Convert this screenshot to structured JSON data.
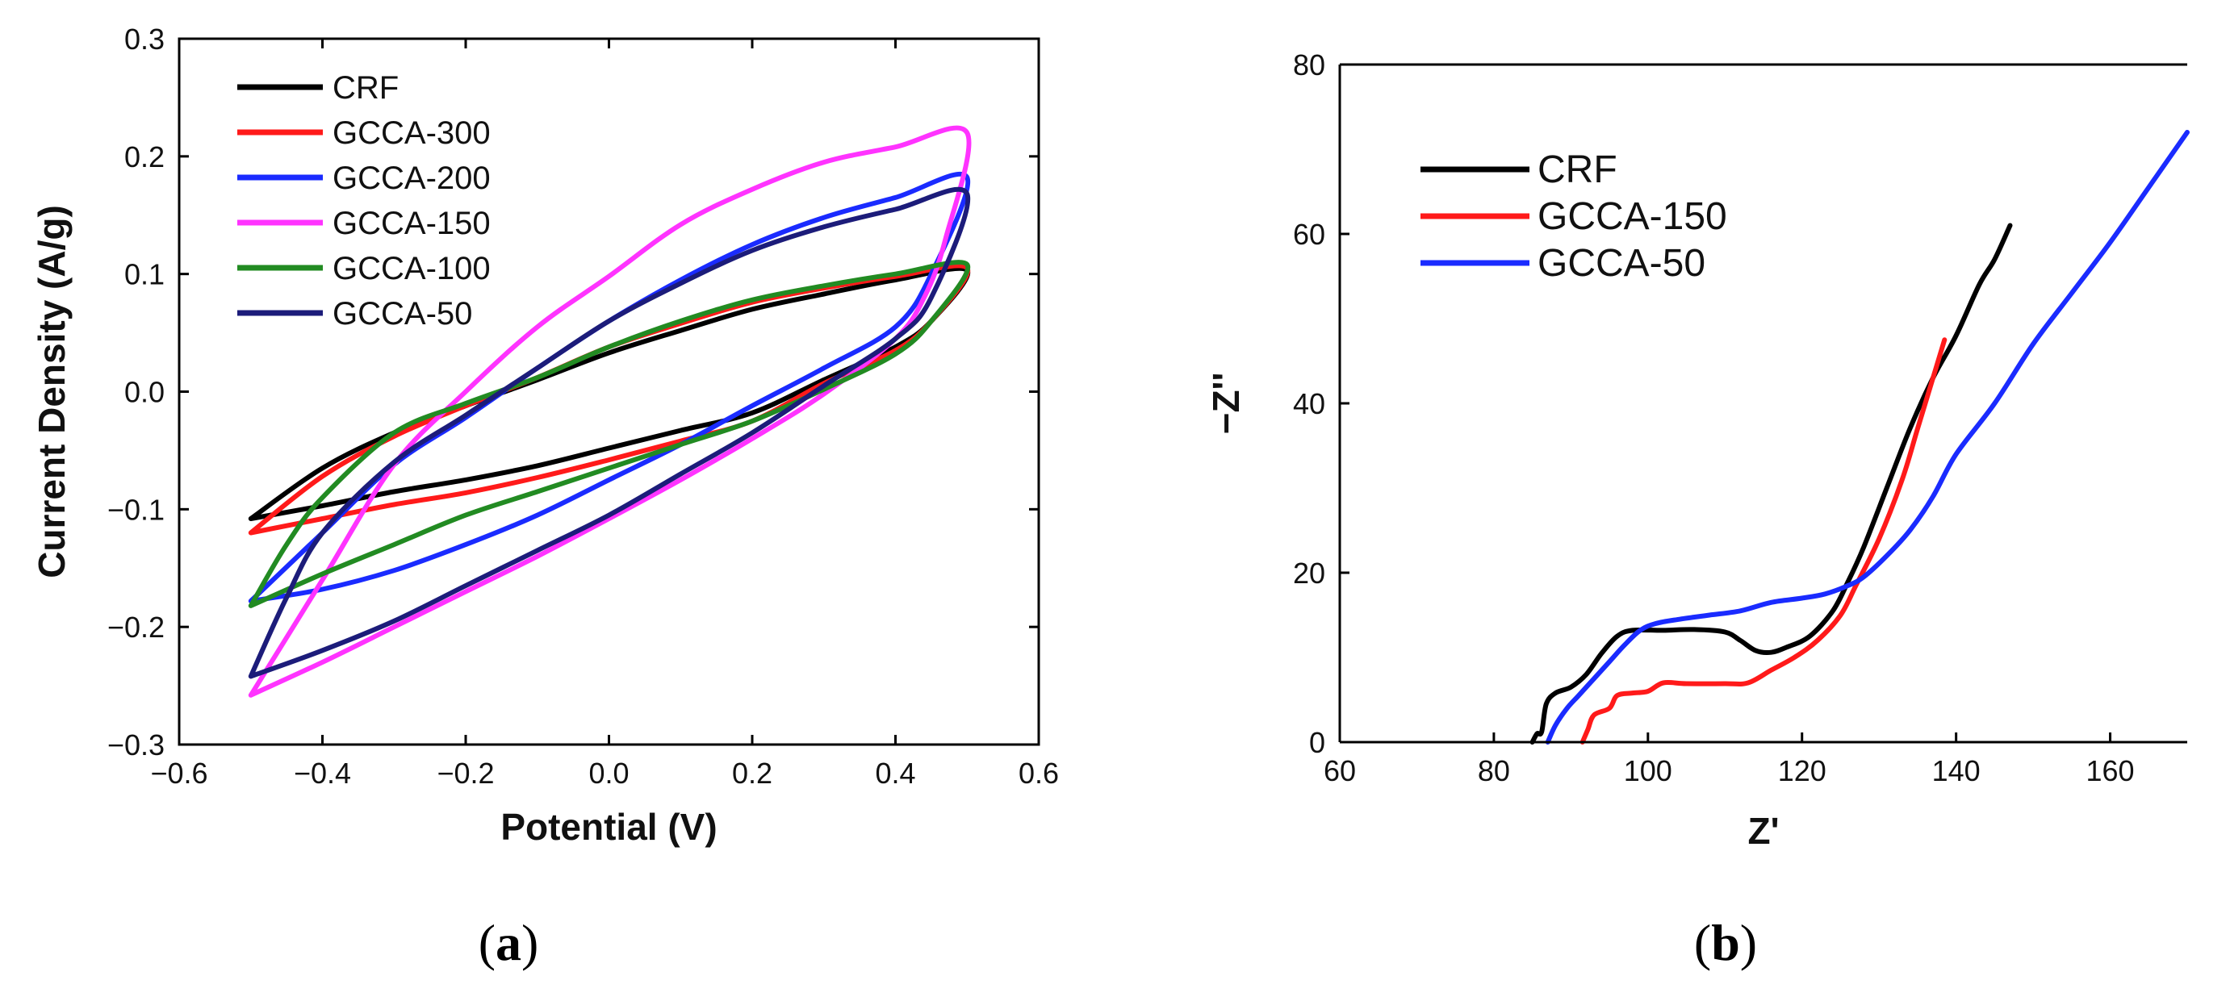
{
  "chart_data": [
    {
      "type": "line",
      "panel_label": "a",
      "title": "",
      "xlabel": "Potential (V)",
      "ylabel": "Current Density (A/g)",
      "xlim": [
        -0.6,
        0.6
      ],
      "ylim": [
        -0.3,
        0.3
      ],
      "xticks": [
        -0.6,
        -0.4,
        -0.2,
        0.0,
        0.2,
        0.4,
        0.6
      ],
      "yticks": [
        -0.3,
        -0.2,
        -0.1,
        0.0,
        0.1,
        0.2,
        0.3
      ],
      "xtick_labels": [
        "−0.6",
        "−0.4",
        "−0.2",
        "0.0",
        "0.2",
        "0.4",
        "0.6"
      ],
      "ytick_labels": [
        "−0.3",
        "−0.2",
        "−0.1",
        "0.0",
        "0.1",
        "0.2",
        "0.3"
      ],
      "legend_position": "top-left",
      "series": [
        {
          "name": "CRF",
          "color": "#000000",
          "upper": [
            [
              -0.5,
              -0.108
            ],
            [
              -0.4,
              -0.065
            ],
            [
              -0.3,
              -0.035
            ],
            [
              -0.2,
              -0.012
            ],
            [
              -0.1,
              0.01
            ],
            [
              0.0,
              0.033
            ],
            [
              0.1,
              0.052
            ],
            [
              0.2,
              0.07
            ],
            [
              0.3,
              0.083
            ],
            [
              0.4,
              0.095
            ],
            [
              0.5,
              0.103
            ]
          ],
          "lower": [
            [
              0.5,
              0.1
            ],
            [
              0.45,
              0.06
            ],
            [
              0.4,
              0.038
            ],
            [
              0.3,
              0.01
            ],
            [
              0.2,
              -0.018
            ],
            [
              0.1,
              -0.033
            ],
            [
              0.0,
              -0.048
            ],
            [
              -0.1,
              -0.063
            ],
            [
              -0.2,
              -0.075
            ],
            [
              -0.3,
              -0.085
            ],
            [
              -0.4,
              -0.097
            ],
            [
              -0.5,
              -0.108
            ]
          ]
        },
        {
          "name": "GCCA-300",
          "color": "#ff1a1a",
          "upper": [
            [
              -0.5,
              -0.12
            ],
            [
              -0.4,
              -0.072
            ],
            [
              -0.3,
              -0.038
            ],
            [
              -0.2,
              -0.012
            ],
            [
              -0.1,
              0.012
            ],
            [
              0.0,
              0.038
            ],
            [
              0.1,
              0.058
            ],
            [
              0.2,
              0.076
            ],
            [
              0.3,
              0.088
            ],
            [
              0.4,
              0.098
            ],
            [
              0.5,
              0.105
            ]
          ],
          "lower": [
            [
              0.5,
              0.1
            ],
            [
              0.45,
              0.06
            ],
            [
              0.4,
              0.035
            ],
            [
              0.3,
              0.007
            ],
            [
              0.2,
              -0.025
            ],
            [
              0.1,
              -0.042
            ],
            [
              0.0,
              -0.058
            ],
            [
              -0.1,
              -0.073
            ],
            [
              -0.2,
              -0.086
            ],
            [
              -0.3,
              -0.096
            ],
            [
              -0.4,
              -0.108
            ],
            [
              -0.5,
              -0.12
            ]
          ]
        },
        {
          "name": "GCCA-200",
          "color": "#1a2bff",
          "upper": [
            [
              -0.5,
              -0.178
            ],
            [
              -0.4,
              -0.12
            ],
            [
              -0.3,
              -0.062
            ],
            [
              -0.2,
              -0.022
            ],
            [
              -0.1,
              0.02
            ],
            [
              0.0,
              0.06
            ],
            [
              0.1,
              0.095
            ],
            [
              0.2,
              0.125
            ],
            [
              0.3,
              0.148
            ],
            [
              0.4,
              0.165
            ],
            [
              0.5,
              0.182
            ]
          ],
          "lower": [
            [
              0.5,
              0.17
            ],
            [
              0.45,
              0.1
            ],
            [
              0.4,
              0.055
            ],
            [
              0.3,
              0.02
            ],
            [
              0.2,
              -0.012
            ],
            [
              0.1,
              -0.045
            ],
            [
              0.0,
              -0.075
            ],
            [
              -0.1,
              -0.105
            ],
            [
              -0.2,
              -0.13
            ],
            [
              -0.3,
              -0.152
            ],
            [
              -0.4,
              -0.168
            ],
            [
              -0.5,
              -0.178
            ]
          ]
        },
        {
          "name": "GCCA-150",
          "color": "#ff33ff",
          "upper": [
            [
              -0.5,
              -0.258
            ],
            [
              -0.4,
              -0.16
            ],
            [
              -0.3,
              -0.062
            ],
            [
              -0.2,
              0.0
            ],
            [
              -0.1,
              0.055
            ],
            [
              0.0,
              0.098
            ],
            [
              0.1,
              0.142
            ],
            [
              0.2,
              0.172
            ],
            [
              0.3,
              0.195
            ],
            [
              0.4,
              0.208
            ],
            [
              0.5,
              0.22
            ]
          ],
          "lower": [
            [
              0.5,
              0.2
            ],
            [
              0.47,
              0.13
            ],
            [
              0.44,
              0.08
            ],
            [
              0.4,
              0.045
            ],
            [
              0.3,
              -0.002
            ],
            [
              0.2,
              -0.04
            ],
            [
              0.1,
              -0.075
            ],
            [
              0.0,
              -0.108
            ],
            [
              -0.1,
              -0.14
            ],
            [
              -0.2,
              -0.17
            ],
            [
              -0.3,
              -0.2
            ],
            [
              -0.4,
              -0.23
            ],
            [
              -0.5,
              -0.258
            ]
          ]
        },
        {
          "name": "GCCA-100",
          "color": "#228b22",
          "upper": [
            [
              -0.5,
              -0.182
            ],
            [
              -0.45,
              -0.13
            ],
            [
              -0.4,
              -0.09
            ],
            [
              -0.3,
              -0.035
            ],
            [
              -0.2,
              -0.01
            ],
            [
              -0.1,
              0.012
            ],
            [
              0.0,
              0.038
            ],
            [
              0.1,
              0.06
            ],
            [
              0.2,
              0.078
            ],
            [
              0.3,
              0.09
            ],
            [
              0.4,
              0.1
            ],
            [
              0.5,
              0.108
            ]
          ],
          "lower": [
            [
              0.5,
              0.098
            ],
            [
              0.45,
              0.06
            ],
            [
              0.4,
              0.032
            ],
            [
              0.3,
              0.002
            ],
            [
              0.2,
              -0.025
            ],
            [
              0.1,
              -0.045
            ],
            [
              0.0,
              -0.065
            ],
            [
              -0.1,
              -0.085
            ],
            [
              -0.2,
              -0.105
            ],
            [
              -0.3,
              -0.13
            ],
            [
              -0.4,
              -0.155
            ],
            [
              -0.5,
              -0.182
            ]
          ]
        },
        {
          "name": "GCCA-50",
          "color": "#1c1c7a",
          "upper": [
            [
              -0.5,
              -0.242
            ],
            [
              -0.45,
              -0.175
            ],
            [
              -0.4,
              -0.12
            ],
            [
              -0.3,
              -0.06
            ],
            [
              -0.2,
              -0.02
            ],
            [
              -0.1,
              0.02
            ],
            [
              0.0,
              0.06
            ],
            [
              0.1,
              0.092
            ],
            [
              0.2,
              0.12
            ],
            [
              0.3,
              0.14
            ],
            [
              0.4,
              0.155
            ],
            [
              0.5,
              0.168
            ]
          ],
          "lower": [
            [
              0.5,
              0.16
            ],
            [
              0.45,
              0.08
            ],
            [
              0.4,
              0.045
            ],
            [
              0.3,
              0.005
            ],
            [
              0.2,
              -0.035
            ],
            [
              0.1,
              -0.07
            ],
            [
              0.0,
              -0.105
            ],
            [
              -0.1,
              -0.135
            ],
            [
              -0.2,
              -0.165
            ],
            [
              -0.3,
              -0.195
            ],
            [
              -0.4,
              -0.22
            ],
            [
              -0.5,
              -0.242
            ]
          ]
        }
      ]
    },
    {
      "type": "line",
      "panel_label": "b",
      "title": "",
      "xlabel": "Z'",
      "ylabel": "−Z''",
      "xlim": [
        60,
        170
      ],
      "ylim": [
        0,
        80
      ],
      "xticks": [
        60,
        80,
        100,
        120,
        140,
        160
      ],
      "yticks": [
        0,
        20,
        40,
        60,
        80
      ],
      "xtick_labels": [
        "60",
        "80",
        "100",
        "120",
        "140",
        "160"
      ],
      "ytick_labels": [
        "0",
        "20",
        "40",
        "60",
        "80"
      ],
      "legend_position": "top-left",
      "series": [
        {
          "name": "CRF",
          "color": "#000000",
          "points": [
            [
              85,
              0
            ],
            [
              85.6,
              1
            ],
            [
              86.2,
              1.2
            ],
            [
              86.8,
              4.5
            ],
            [
              88,
              5.8
            ],
            [
              90,
              6.5
            ],
            [
              92,
              8
            ],
            [
              94,
              10.5
            ],
            [
              96,
              12.5
            ],
            [
              98,
              13.2
            ],
            [
              102,
              13.2
            ],
            [
              106,
              13.3
            ],
            [
              110,
              13
            ],
            [
              112,
              12
            ],
            [
              114,
              10.8
            ],
            [
              116,
              10.6
            ],
            [
              118,
              11.2
            ],
            [
              121,
              12.5
            ],
            [
              124,
              15.5
            ],
            [
              126,
              19
            ],
            [
              128,
              23
            ],
            [
              131,
              30
            ],
            [
              134,
              37
            ],
            [
              137,
              43
            ],
            [
              140,
              48
            ],
            [
              143,
              54
            ],
            [
              145,
              57
            ],
            [
              147,
              61
            ]
          ]
        },
        {
          "name": "GCCA-150",
          "color": "#ff1a1a",
          "points": [
            [
              91.5,
              0
            ],
            [
              92.2,
              1.5
            ],
            [
              93,
              3.2
            ],
            [
              95,
              4
            ],
            [
              96,
              5.5
            ],
            [
              98,
              5.8
            ],
            [
              100,
              6
            ],
            [
              102,
              7
            ],
            [
              105,
              6.9
            ],
            [
              110,
              6.9
            ],
            [
              113,
              7
            ],
            [
              116,
              8.5
            ],
            [
              119,
              10
            ],
            [
              122,
              12
            ],
            [
              125,
              15
            ],
            [
              127,
              18.5
            ],
            [
              130,
              24
            ],
            [
              133,
              31
            ],
            [
              135,
              37
            ],
            [
              137,
              43
            ],
            [
              138.5,
              47.5
            ]
          ]
        },
        {
          "name": "GCCA-50",
          "color": "#1a2bff",
          "points": [
            [
              87,
              0
            ],
            [
              88,
              2
            ],
            [
              89.5,
              4
            ],
            [
              91,
              5.5
            ],
            [
              93,
              7.5
            ],
            [
              95,
              9.5
            ],
            [
              97,
              11.5
            ],
            [
              99,
              13.2
            ],
            [
              101,
              14
            ],
            [
              104,
              14.5
            ],
            [
              108,
              15
            ],
            [
              112,
              15.5
            ],
            [
              116,
              16.5
            ],
            [
              120,
              17
            ],
            [
              123,
              17.5
            ],
            [
              126,
              18.5
            ],
            [
              128,
              19.5
            ],
            [
              131,
              22
            ],
            [
              134,
              25
            ],
            [
              137,
              29
            ],
            [
              140,
              34
            ],
            [
              145,
              40
            ],
            [
              150,
              47
            ],
            [
              155,
              53
            ],
            [
              160,
              59
            ],
            [
              165,
              65.5
            ],
            [
              170,
              72
            ]
          ]
        }
      ]
    }
  ]
}
